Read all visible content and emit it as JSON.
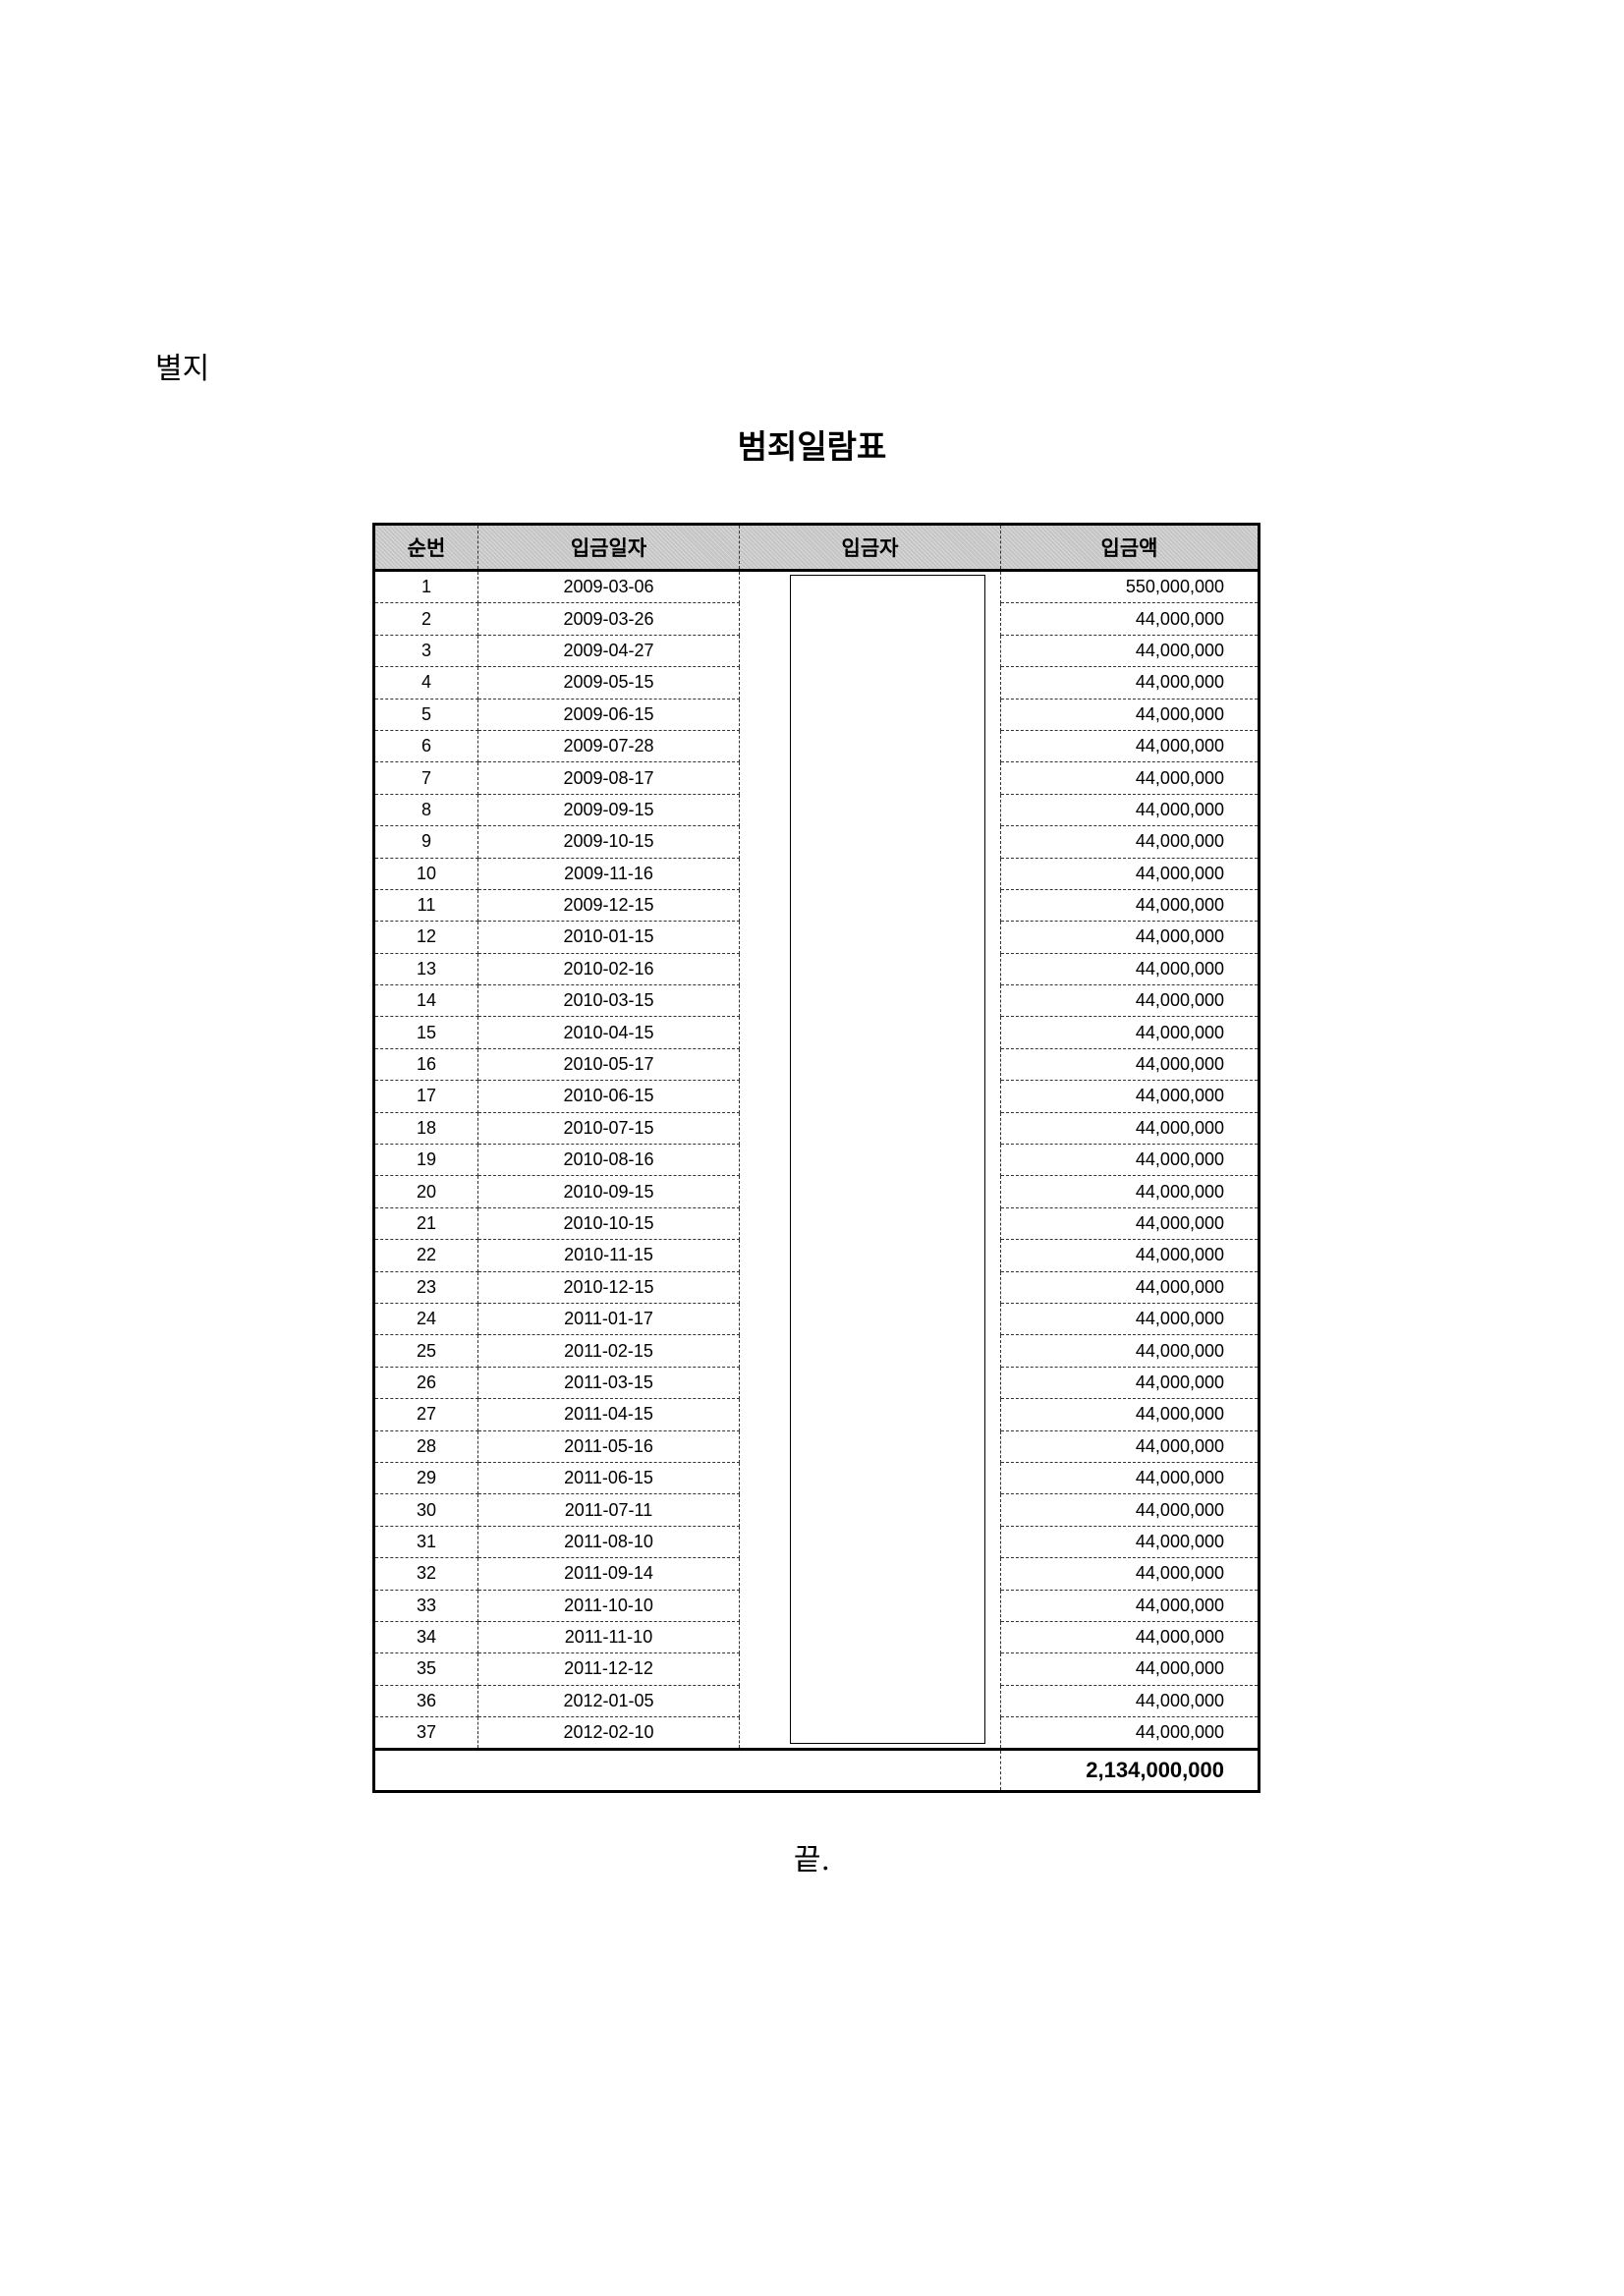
{
  "annex_label": "별지",
  "title": "범죄일람표",
  "table": {
    "headers": [
      "순번",
      "입금일자",
      "입금자",
      "입금액"
    ],
    "rows": [
      {
        "no": "1",
        "date": "2009-03-06",
        "amount": "550,000,000"
      },
      {
        "no": "2",
        "date": "2009-03-26",
        "amount": "44,000,000"
      },
      {
        "no": "3",
        "date": "2009-04-27",
        "amount": "44,000,000"
      },
      {
        "no": "4",
        "date": "2009-05-15",
        "amount": "44,000,000"
      },
      {
        "no": "5",
        "date": "2009-06-15",
        "amount": "44,000,000"
      },
      {
        "no": "6",
        "date": "2009-07-28",
        "amount": "44,000,000"
      },
      {
        "no": "7",
        "date": "2009-08-17",
        "amount": "44,000,000"
      },
      {
        "no": "8",
        "date": "2009-09-15",
        "amount": "44,000,000"
      },
      {
        "no": "9",
        "date": "2009-10-15",
        "amount": "44,000,000"
      },
      {
        "no": "10",
        "date": "2009-11-16",
        "amount": "44,000,000"
      },
      {
        "no": "11",
        "date": "2009-12-15",
        "amount": "44,000,000"
      },
      {
        "no": "12",
        "date": "2010-01-15",
        "amount": "44,000,000"
      },
      {
        "no": "13",
        "date": "2010-02-16",
        "amount": "44,000,000"
      },
      {
        "no": "14",
        "date": "2010-03-15",
        "amount": "44,000,000"
      },
      {
        "no": "15",
        "date": "2010-04-15",
        "amount": "44,000,000"
      },
      {
        "no": "16",
        "date": "2010-05-17",
        "amount": "44,000,000"
      },
      {
        "no": "17",
        "date": "2010-06-15",
        "amount": "44,000,000"
      },
      {
        "no": "18",
        "date": "2010-07-15",
        "amount": "44,000,000"
      },
      {
        "no": "19",
        "date": "2010-08-16",
        "amount": "44,000,000"
      },
      {
        "no": "20",
        "date": "2010-09-15",
        "amount": "44,000,000"
      },
      {
        "no": "21",
        "date": "2010-10-15",
        "amount": "44,000,000"
      },
      {
        "no": "22",
        "date": "2010-11-15",
        "amount": "44,000,000"
      },
      {
        "no": "23",
        "date": "2010-12-15",
        "amount": "44,000,000"
      },
      {
        "no": "24",
        "date": "2011-01-17",
        "amount": "44,000,000"
      },
      {
        "no": "25",
        "date": "2011-02-15",
        "amount": "44,000,000"
      },
      {
        "no": "26",
        "date": "2011-03-15",
        "amount": "44,000,000"
      },
      {
        "no": "27",
        "date": "2011-04-15",
        "amount": "44,000,000"
      },
      {
        "no": "28",
        "date": "2011-05-16",
        "amount": "44,000,000"
      },
      {
        "no": "29",
        "date": "2011-06-15",
        "amount": "44,000,000"
      },
      {
        "no": "30",
        "date": "2011-07-11",
        "amount": "44,000,000"
      },
      {
        "no": "31",
        "date": "2011-08-10",
        "amount": "44,000,000"
      },
      {
        "no": "32",
        "date": "2011-09-14",
        "amount": "44,000,000"
      },
      {
        "no": "33",
        "date": "2011-10-10",
        "amount": "44,000,000"
      },
      {
        "no": "34",
        "date": "2011-11-10",
        "amount": "44,000,000"
      },
      {
        "no": "35",
        "date": "2011-12-12",
        "amount": "44,000,000"
      },
      {
        "no": "36",
        "date": "2012-01-05",
        "amount": "44,000,000"
      },
      {
        "no": "37",
        "date": "2012-02-10",
        "amount": "44,000,000"
      }
    ],
    "total": "2,134,000,000"
  },
  "end_mark": "끝."
}
